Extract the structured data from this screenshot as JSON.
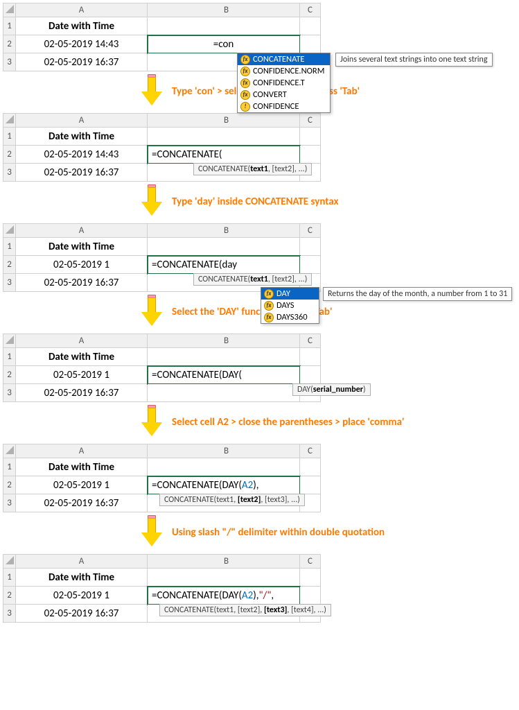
{
  "colors": {
    "header_bg": "#1cd3c9",
    "active_border": "#217346",
    "step_text": "#ff7a00",
    "arrow_fill": "#ffd400",
    "arrow_eraser": "#ff9aa8",
    "autocomplete_selected": "#0a64c4"
  },
  "columns": [
    "A",
    "B",
    "C"
  ],
  "header_label": "Date with Time",
  "rows_full": [
    "02-05-2019 14:43",
    "02-05-2019 16:37"
  ],
  "rows_trunc": [
    "02-05-2019 1",
    "02-05-2019 16:37"
  ],
  "panel1": {
    "formula": "=con",
    "dropdown": [
      {
        "label": "CONCATENATE",
        "selected": true,
        "warn": false
      },
      {
        "label": "CONFIDENCE.NORM",
        "selected": false,
        "warn": false
      },
      {
        "label": "CONFIDENCE.T",
        "selected": false,
        "warn": false
      },
      {
        "label": "CONVERT",
        "selected": false,
        "warn": false
      },
      {
        "label": "CONFIDENCE",
        "selected": false,
        "warn": true
      }
    ],
    "tooltip": "Joins several text strings into one text string"
  },
  "step1": "Type 'con' > select the function > press 'Tab'",
  "panel2": {
    "formula": "=CONCATENATE(",
    "hint_html": "CONCATENATE(<b>text1</b>, [text2], ...)"
  },
  "step2": "Type 'day' inside CONCATENATE syntax",
  "panel3": {
    "formula": "=CONCATENATE(day",
    "hint_html": "CONCATENATE(<b>text1</b>, [text2], ...)",
    "dropdown": [
      {
        "label": "DAY",
        "selected": true,
        "warn": false
      },
      {
        "label": "DAYS",
        "selected": false,
        "warn": false
      },
      {
        "label": "DAYS360",
        "selected": false,
        "warn": false
      }
    ],
    "tooltip": "Returns the day of the month, a number from 1 to 31"
  },
  "step3": "Select the 'DAY' function > press 'Tab'",
  "panel4": {
    "formula": "=CONCATENATE(DAY(",
    "hint_html": "DAY(<b>serial_number</b>)"
  },
  "step4": "Select cell A2 > close the parentheses > place 'comma'",
  "panel5": {
    "formula_parts": [
      "=CONCATENATE(DAY(",
      "A2",
      "),"
    ],
    "hint_html": "CONCATENATE(text1, <b>[text2]</b>, [text3], ...)"
  },
  "step5": "Using slash \"/\" delimiter within double quotation",
  "panel6": {
    "formula_parts": [
      "=CONCATENATE(DAY(",
      "A2",
      "),",
      "\"/\"",
      ","
    ],
    "hint_html": "CONCATENATE(text1, [text2], <b>[text3]</b>, [text4], ...)"
  }
}
